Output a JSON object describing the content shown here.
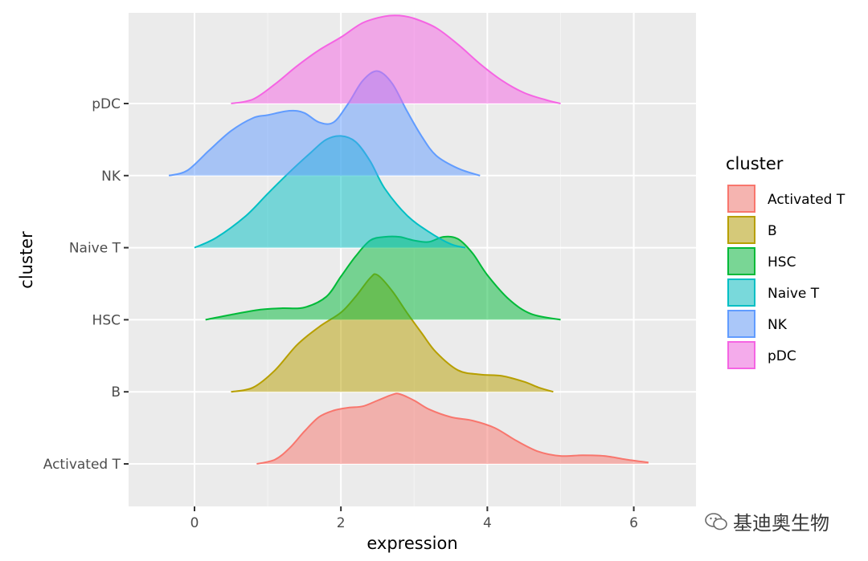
{
  "chart_data": {
    "type": "area",
    "subtype": "ridgeline-density",
    "xlabel": "expression",
    "ylabel": "cluster",
    "xlim": [
      -0.9,
      6.85
    ],
    "x_ticks": [
      "0",
      "2",
      "4",
      "6"
    ],
    "categories": [
      "Activated T",
      "B",
      "HSC",
      "Naive T",
      "NK",
      "pDC"
    ],
    "legend": {
      "title": "cluster",
      "position": "right"
    },
    "grid": true,
    "series": [
      {
        "name": "Activated T",
        "color": "#F8766D",
        "points": [
          [
            0.85,
            0.0
          ],
          [
            1.1,
            0.06
          ],
          [
            1.3,
            0.22
          ],
          [
            1.5,
            0.45
          ],
          [
            1.7,
            0.65
          ],
          [
            1.9,
            0.74
          ],
          [
            2.1,
            0.78
          ],
          [
            2.3,
            0.8
          ],
          [
            2.5,
            0.88
          ],
          [
            2.7,
            0.96
          ],
          [
            2.8,
            0.97
          ],
          [
            3.0,
            0.88
          ],
          [
            3.2,
            0.76
          ],
          [
            3.5,
            0.65
          ],
          [
            3.8,
            0.6
          ],
          [
            4.1,
            0.5
          ],
          [
            4.4,
            0.32
          ],
          [
            4.7,
            0.17
          ],
          [
            5.0,
            0.11
          ],
          [
            5.3,
            0.12
          ],
          [
            5.6,
            0.11
          ],
          [
            5.9,
            0.06
          ],
          [
            6.2,
            0.02
          ]
        ]
      },
      {
        "name": "B",
        "color": "#B79F00",
        "points": [
          [
            0.5,
            0.0
          ],
          [
            0.8,
            0.06
          ],
          [
            1.1,
            0.3
          ],
          [
            1.4,
            0.65
          ],
          [
            1.7,
            0.9
          ],
          [
            2.0,
            1.1
          ],
          [
            2.2,
            1.32
          ],
          [
            2.4,
            1.58
          ],
          [
            2.5,
            1.62
          ],
          [
            2.7,
            1.4
          ],
          [
            2.9,
            1.1
          ],
          [
            3.1,
            0.82
          ],
          [
            3.3,
            0.55
          ],
          [
            3.6,
            0.3
          ],
          [
            3.9,
            0.24
          ],
          [
            4.2,
            0.22
          ],
          [
            4.5,
            0.14
          ],
          [
            4.7,
            0.06
          ],
          [
            4.9,
            0.0
          ]
        ]
      },
      {
        "name": "HSC",
        "color": "#00BA38",
        "points": [
          [
            0.15,
            0.0
          ],
          [
            0.5,
            0.07
          ],
          [
            0.9,
            0.14
          ],
          [
            1.2,
            0.16
          ],
          [
            1.5,
            0.17
          ],
          [
            1.8,
            0.32
          ],
          [
            2.0,
            0.6
          ],
          [
            2.2,
            0.88
          ],
          [
            2.4,
            1.1
          ],
          [
            2.6,
            1.15
          ],
          [
            2.8,
            1.15
          ],
          [
            3.0,
            1.1
          ],
          [
            3.2,
            1.08
          ],
          [
            3.4,
            1.15
          ],
          [
            3.6,
            1.12
          ],
          [
            3.8,
            0.92
          ],
          [
            4.0,
            0.62
          ],
          [
            4.3,
            0.28
          ],
          [
            4.6,
            0.08
          ],
          [
            5.0,
            0.0
          ]
        ]
      },
      {
        "name": "Naive T",
        "color": "#00BFC4",
        "points": [
          [
            0.0,
            0.0
          ],
          [
            0.3,
            0.14
          ],
          [
            0.7,
            0.44
          ],
          [
            1.0,
            0.75
          ],
          [
            1.3,
            1.05
          ],
          [
            1.6,
            1.33
          ],
          [
            1.8,
            1.5
          ],
          [
            2.0,
            1.55
          ],
          [
            2.2,
            1.47
          ],
          [
            2.4,
            1.2
          ],
          [
            2.6,
            0.82
          ],
          [
            2.9,
            0.45
          ],
          [
            3.2,
            0.22
          ],
          [
            3.5,
            0.05
          ],
          [
            3.7,
            0.0
          ]
        ]
      },
      {
        "name": "NK",
        "color": "#619CFF",
        "points": [
          [
            -0.35,
            0.0
          ],
          [
            -0.1,
            0.07
          ],
          [
            0.2,
            0.35
          ],
          [
            0.5,
            0.62
          ],
          [
            0.8,
            0.8
          ],
          [
            1.0,
            0.84
          ],
          [
            1.3,
            0.9
          ],
          [
            1.5,
            0.87
          ],
          [
            1.7,
            0.74
          ],
          [
            1.9,
            0.74
          ],
          [
            2.1,
            1.0
          ],
          [
            2.3,
            1.32
          ],
          [
            2.5,
            1.45
          ],
          [
            2.7,
            1.28
          ],
          [
            2.9,
            0.9
          ],
          [
            3.1,
            0.55
          ],
          [
            3.3,
            0.28
          ],
          [
            3.6,
            0.1
          ],
          [
            3.9,
            0.0
          ]
        ]
      },
      {
        "name": "pDC",
        "color": "#F564E3",
        "points": [
          [
            0.5,
            0.0
          ],
          [
            0.8,
            0.06
          ],
          [
            1.1,
            0.27
          ],
          [
            1.4,
            0.52
          ],
          [
            1.7,
            0.74
          ],
          [
            2.0,
            0.92
          ],
          [
            2.3,
            1.12
          ],
          [
            2.6,
            1.21
          ],
          [
            2.8,
            1.22
          ],
          [
            3.0,
            1.18
          ],
          [
            3.3,
            1.05
          ],
          [
            3.6,
            0.82
          ],
          [
            3.9,
            0.55
          ],
          [
            4.2,
            0.32
          ],
          [
            4.5,
            0.15
          ],
          [
            4.8,
            0.05
          ],
          [
            5.0,
            0.0
          ]
        ]
      }
    ]
  },
  "watermark": {
    "text": "基迪奥生物"
  }
}
